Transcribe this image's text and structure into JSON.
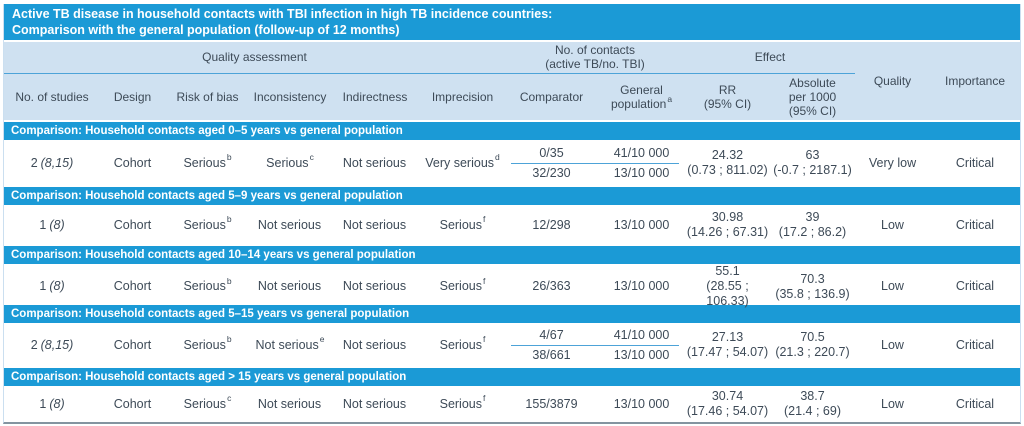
{
  "title": {
    "line1": "Active TB disease in household contacts with TBI infection in high TB incidence countries:",
    "line2": "Comparison with the general population (follow-up of 12 months)"
  },
  "header": {
    "group_quality_assessment": "Quality assessment",
    "group_contacts_line1": "No. of contacts",
    "group_contacts_line2": "(active TB/no. TBI)",
    "group_effect": "Effect",
    "no_of_studies": "No. of studies",
    "design": "Design",
    "risk_of_bias": "Risk of bias",
    "inconsistency": "Inconsistency",
    "indirectness": "Indirectness",
    "imprecision": "Imprecision",
    "comparator": "Comparator",
    "general_l1": "General",
    "general_l2": "population",
    "general_sup": "a",
    "rr_l1": "RR",
    "rr_l2": "(95% CI)",
    "abs_l1": "Absolute",
    "abs_l2": "per 1000",
    "abs_l3": "(95% CI)",
    "quality": "Quality",
    "importance": "Importance"
  },
  "colors": {
    "band_blue": "#1b9ad6",
    "header_light_blue": "#cfe1f1",
    "text_ink": "#3d4a57",
    "divider_blue": "#4da3d8"
  },
  "sections": [
    {
      "title": "Comparison: Household contacts aged 0–5 years vs general population",
      "row": {
        "studies_num": "2",
        "studies_ref": "(8,15)",
        "design": "Cohort",
        "risk_of_bias": {
          "text": "Serious",
          "sup": "b"
        },
        "inconsistency": {
          "text": "Serious",
          "sup": "c"
        },
        "indirectness": {
          "text": "Not serious",
          "sup": ""
        },
        "imprecision": {
          "text": "Very serious",
          "sup": "d"
        },
        "comparator": [
          "0/35",
          "32/230"
        ],
        "general_population": [
          "41/10 000",
          "13/10 000"
        ],
        "rr": {
          "value": "24.32",
          "ci": "(0.73 ; 811.02)"
        },
        "absolute": {
          "value": "63",
          "ci": "(-0.7 ; 2187.1)"
        },
        "quality": "Very low",
        "importance": "Critical"
      }
    },
    {
      "title": "Comparison: Household contacts aged 5–9 years vs general population",
      "row": {
        "studies_num": "1",
        "studies_ref": "(8)",
        "design": "Cohort",
        "risk_of_bias": {
          "text": "Serious",
          "sup": "b"
        },
        "inconsistency": {
          "text": "Not serious",
          "sup": ""
        },
        "indirectness": {
          "text": "Not serious",
          "sup": ""
        },
        "imprecision": {
          "text": "Serious",
          "sup": "f"
        },
        "comparator": "12/298",
        "general_population": "13/10 000",
        "rr": {
          "value": "30.98",
          "ci": "(14.26 ; 67.31)"
        },
        "absolute": {
          "value": "39",
          "ci": "(17.2 ; 86.2)"
        },
        "quality": "Low",
        "importance": "Critical"
      }
    },
    {
      "title": "Comparison: Household contacts aged 10–14 years vs general population",
      "row": {
        "studies_num": "1",
        "studies_ref": "(8)",
        "design": "Cohort",
        "risk_of_bias": {
          "text": "Serious",
          "sup": "b"
        },
        "inconsistency": {
          "text": "Not serious",
          "sup": ""
        },
        "indirectness": {
          "text": "Not serious",
          "sup": ""
        },
        "imprecision": {
          "text": "Serious",
          "sup": "f"
        },
        "comparator": "26/363",
        "general_population": "13/10 000",
        "rr": {
          "value": "55.1",
          "ci": "(28.55 ; 106.33)"
        },
        "absolute": {
          "value": "70.3",
          "ci": "(35.8 ; 136.9)"
        },
        "quality": "Low",
        "importance": "Critical"
      }
    },
    {
      "title": "Comparison: Household contacts aged 5–15 years vs general population",
      "row": {
        "studies_num": "2",
        "studies_ref": "(8,15)",
        "design": "Cohort",
        "risk_of_bias": {
          "text": "Serious",
          "sup": "b"
        },
        "inconsistency": {
          "text": "Not serious",
          "sup": "e"
        },
        "indirectness": {
          "text": "Not serious",
          "sup": ""
        },
        "imprecision": {
          "text": "Serious",
          "sup": "f"
        },
        "comparator": [
          "4/67",
          "38/661"
        ],
        "general_population": [
          "41/10 000",
          "13/10 000"
        ],
        "rr": {
          "value": "27.13",
          "ci": "(17.47 ; 54.07)"
        },
        "absolute": {
          "value": "70.5",
          "ci": "(21.3 ; 220.7)"
        },
        "quality": "Low",
        "importance": "Critical"
      }
    },
    {
      "title": "Comparison: Household contacts aged > 15 years vs general population",
      "row": {
        "studies_num": "1",
        "studies_ref": "(8)",
        "design": "Cohort",
        "risk_of_bias": {
          "text": "Serious",
          "sup": "c"
        },
        "inconsistency": {
          "text": "Not serious",
          "sup": ""
        },
        "indirectness": {
          "text": "Not serious",
          "sup": ""
        },
        "imprecision": {
          "text": "Serious",
          "sup": "f"
        },
        "comparator": "155/3879",
        "general_population": "13/10 000",
        "rr": {
          "value": "30.74",
          "ci": "(17.46 ; 54.07)"
        },
        "absolute": {
          "value": "38.7",
          "ci": "(21.4 ; 69)"
        },
        "quality": "Low",
        "importance": "Critical"
      }
    }
  ]
}
